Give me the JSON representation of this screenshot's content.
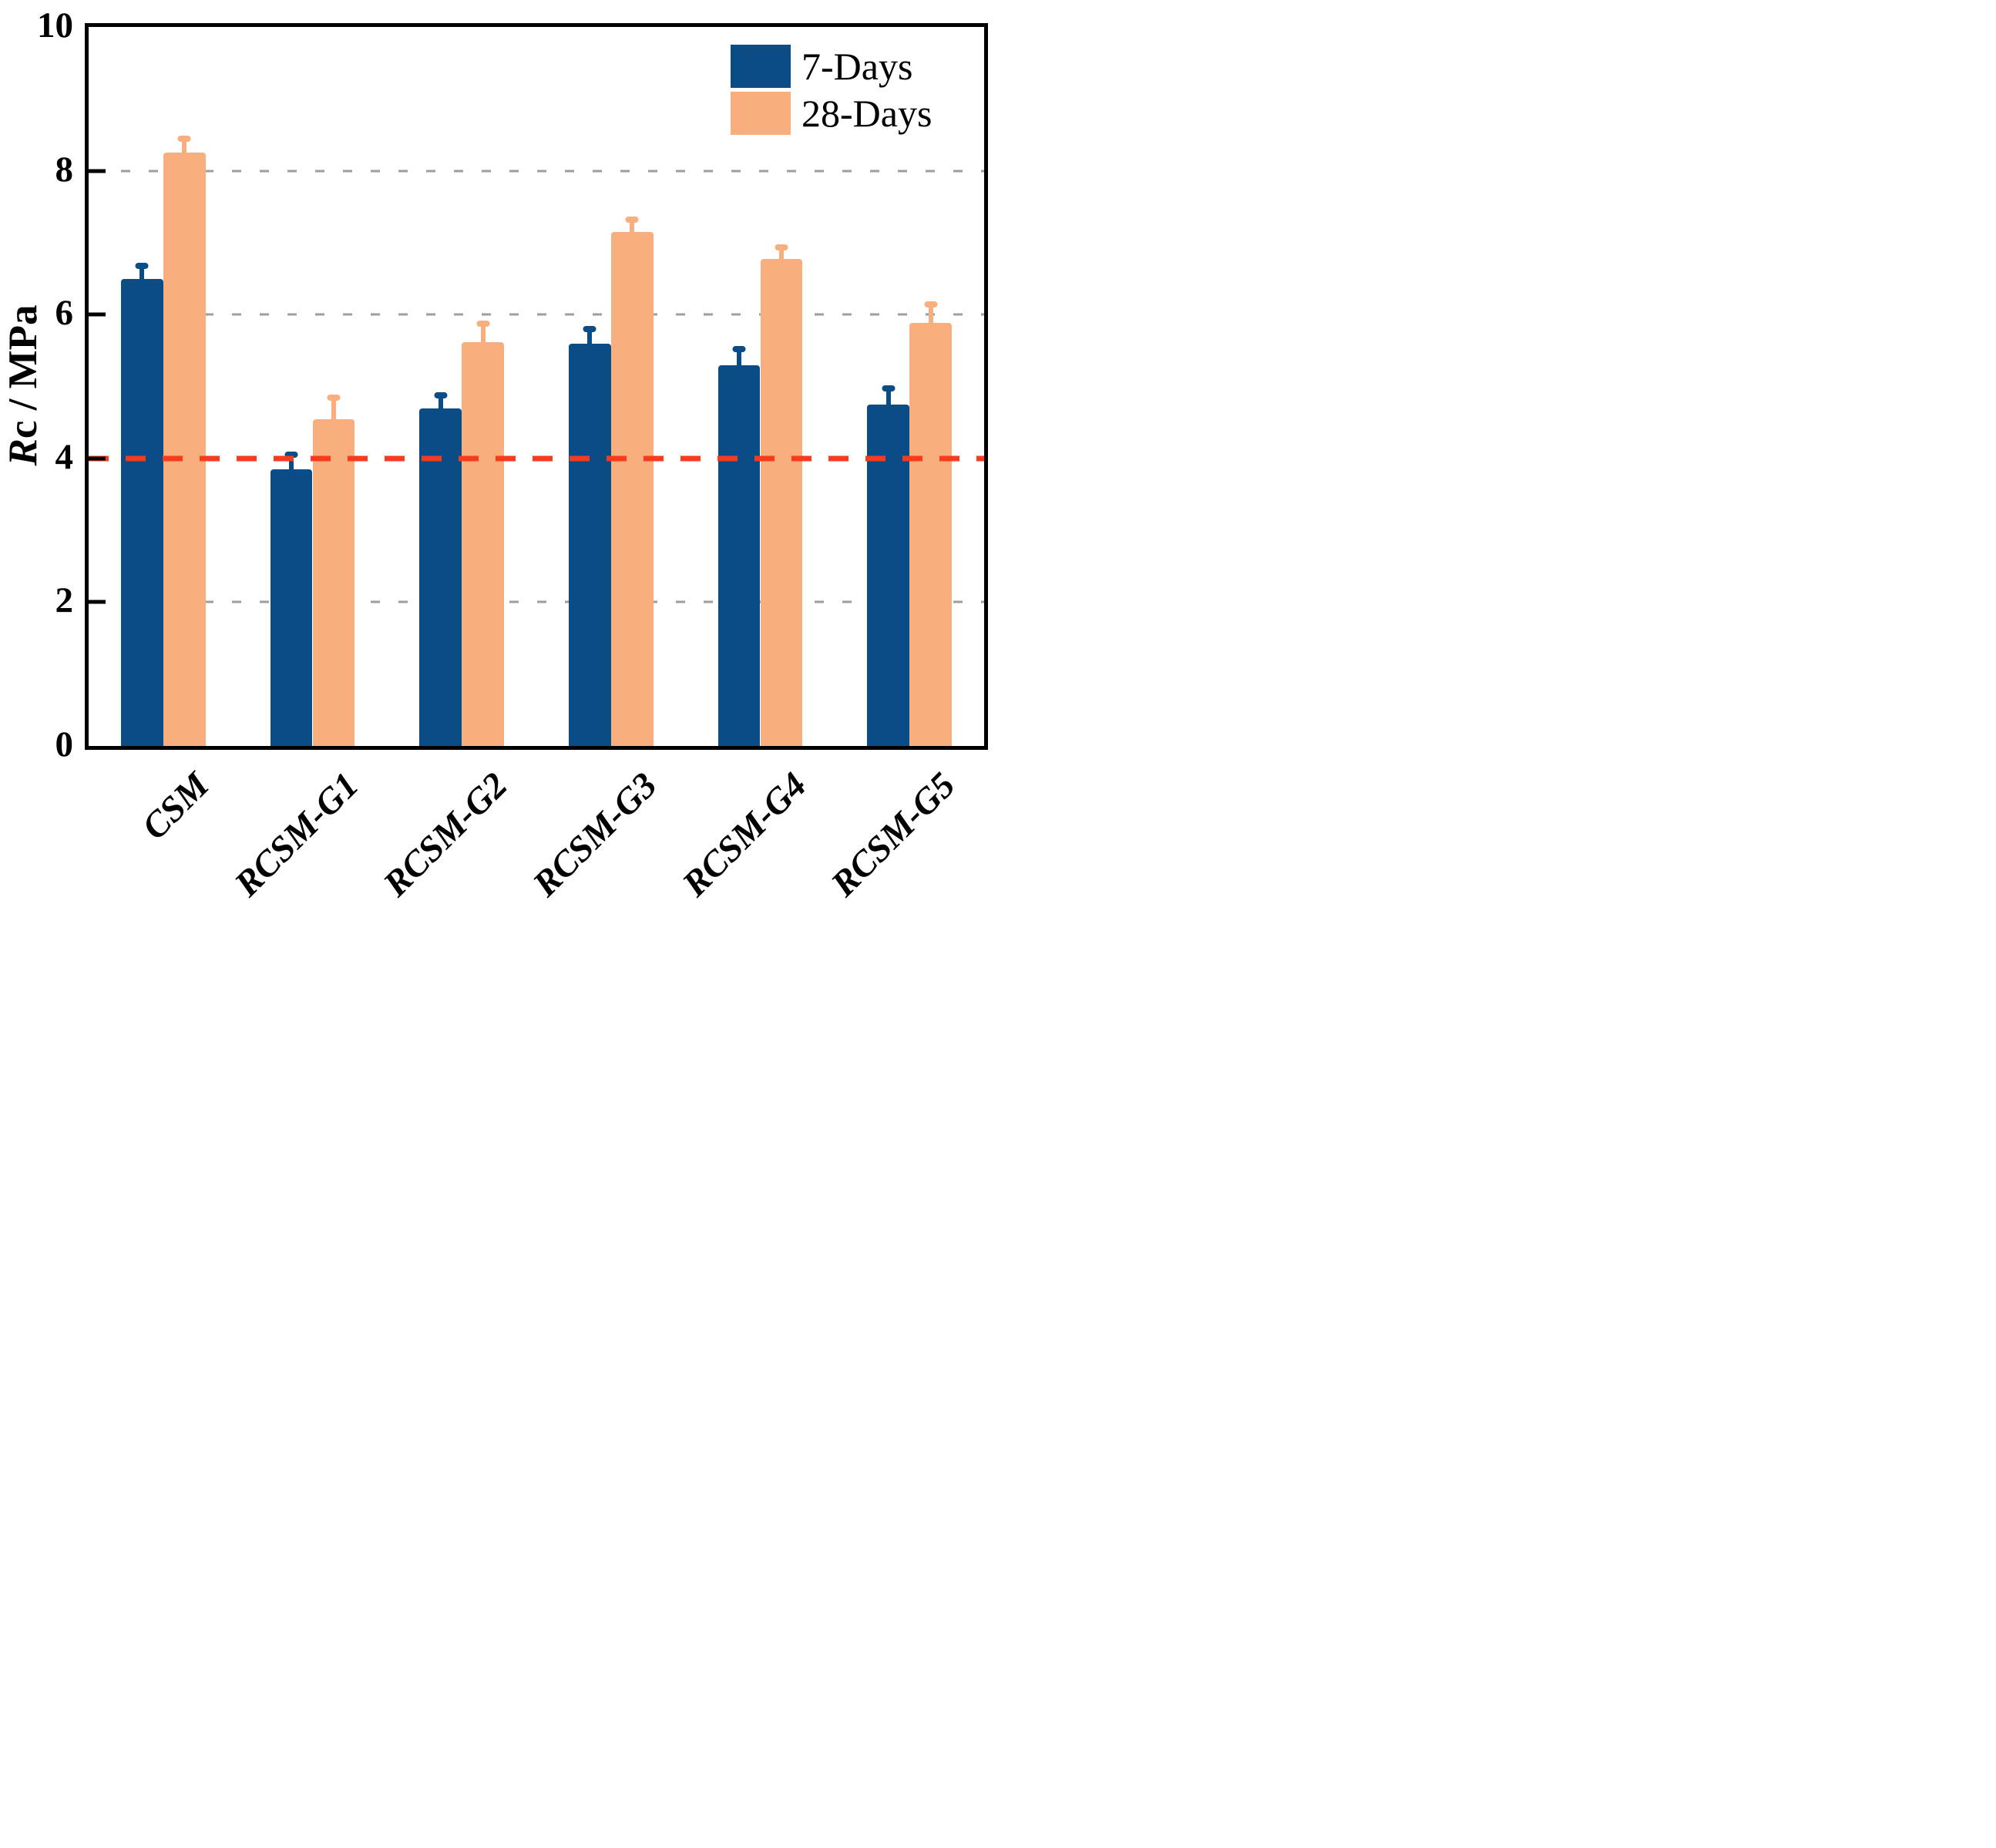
{
  "figure": {
    "background": "#ffffff"
  },
  "chart_data": {
    "type": "bar",
    "title": "",
    "ylabel": "Rc / MPa",
    "ylabel_italic": "R",
    "ylabel_rest": "c / MPa",
    "xlabel": "",
    "ylim": [
      0,
      10
    ],
    "yticks": [
      0,
      2,
      4,
      6,
      8,
      10
    ],
    "gridlines_y": [
      2,
      6,
      8
    ],
    "reference_line_y": 4,
    "grid": "dashed horizontal, behind bars",
    "legend_position": "top-right inside plot",
    "categories": [
      "CSM",
      "RCSM-G1",
      "RCSM-G2",
      "RCSM-G3",
      "RCSM-G4",
      "RCSM-G5"
    ],
    "series": [
      {
        "name": "7-Days",
        "color": "#0A4C86",
        "values": [
          6.5,
          3.85,
          4.7,
          5.6,
          5.3,
          4.75
        ],
        "errors": [
          0.18,
          0.2,
          0.18,
          0.2,
          0.22,
          0.22
        ]
      },
      {
        "name": "28-Days",
        "color": "#F9AF7D",
        "values": [
          8.25,
          4.55,
          5.62,
          7.15,
          6.77,
          5.88
        ],
        "errors": [
          0.2,
          0.3,
          0.25,
          0.17,
          0.16,
          0.26
        ]
      }
    ],
    "colors": {
      "reference_line": "#FA3A1C",
      "gridline": "#9E9E9E",
      "axis": "#000000"
    }
  }
}
